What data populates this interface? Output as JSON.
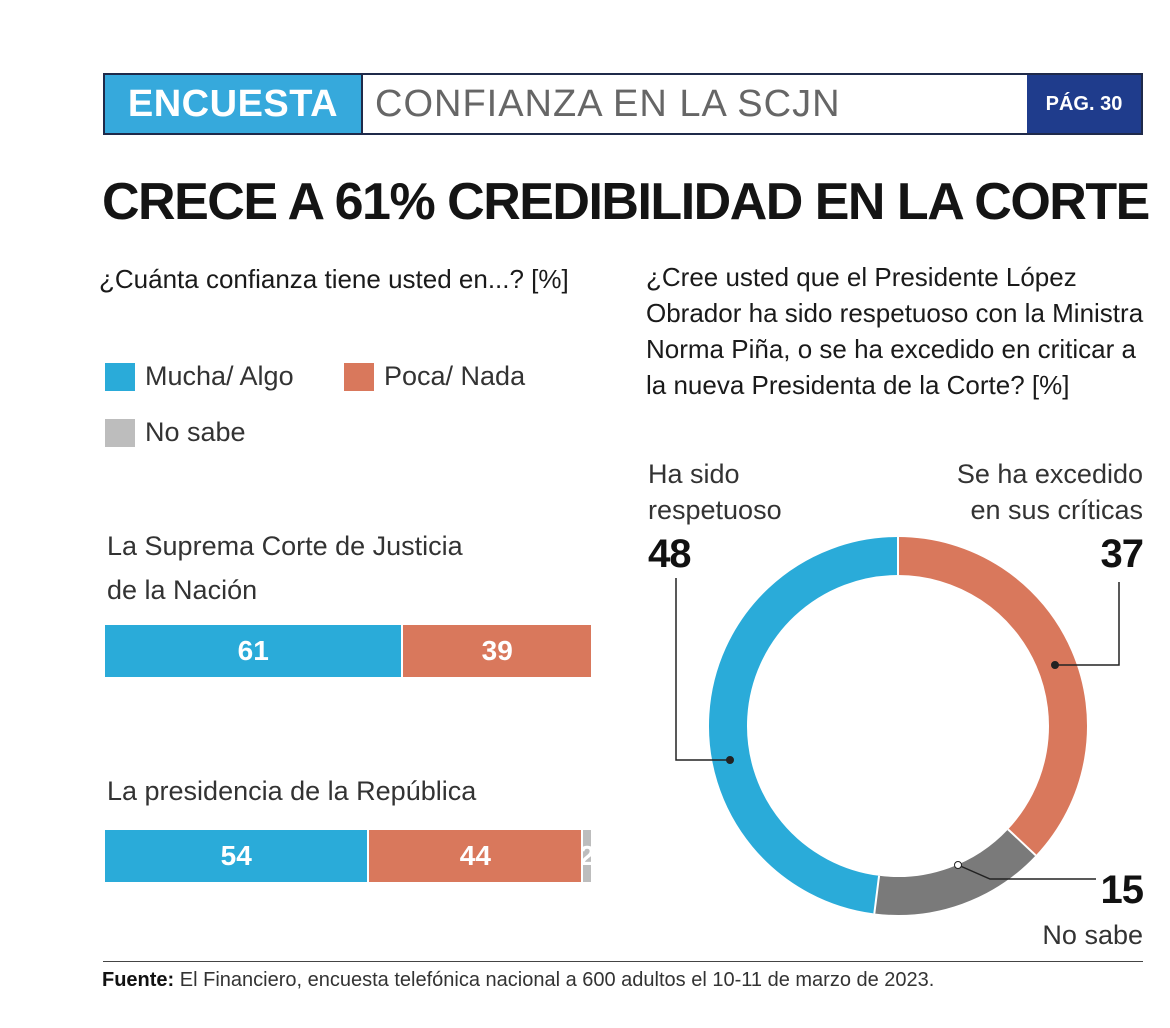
{
  "header": {
    "tag": "ENCUESTA",
    "topic": "CONFIANZA EN LA SCJN",
    "page": "PÁG. 30"
  },
  "headline": "CRECE A 61% CREDIBILIDAD EN LA CORTE",
  "colors": {
    "mucha_algo": "#2aabd9",
    "poca_nada": "#d9785c",
    "no_sabe": "#bdbdbd",
    "no_sabe_donut": "#7a7a7a",
    "header_tag": "#36a9dc",
    "header_page": "#1f3c8c"
  },
  "chart_data": [
    {
      "type": "bar",
      "orientation": "horizontal-stacked",
      "title": "¿Cuánta confianza tiene usted en...? [%]",
      "legend": [
        "Mucha/ Algo",
        "Poca/ Nada",
        "No sabe"
      ],
      "categories": [
        "La Suprema Corte de Justicia de la Nación",
        "La presidencia de la República"
      ],
      "series": [
        {
          "name": "Mucha/ Algo",
          "values": [
            61,
            54
          ]
        },
        {
          "name": "Poca/ Nada",
          "values": [
            39,
            44
          ]
        },
        {
          "name": "No sabe",
          "values": [
            0,
            2
          ]
        }
      ],
      "xlim": [
        0,
        100
      ]
    },
    {
      "type": "pie",
      "variant": "donut",
      "title": "¿Cree usted que el Presidente López Obrador ha sido respetuoso con la Ministra Norma Piña, o se ha excedido en criticar a la nueva Presidenta de la Corte? [%]",
      "slices": [
        {
          "label": "Ha sido respetuoso",
          "value": 48
        },
        {
          "label": "Se ha excedido en sus críticas",
          "value": 37
        },
        {
          "label": "No sabe",
          "value": 15
        }
      ]
    }
  ],
  "labels": {
    "q_left": "¿Cuánta confianza tiene usted en...? [%]",
    "legend_mucha": "Mucha/ Algo",
    "legend_poca": "Poca/ Nada",
    "legend_nosabe": "No sabe",
    "bar1_line1": "La Suprema Corte de Justicia",
    "bar1_line2": "de la Nación",
    "bar2_line1": "La presidencia de la República",
    "q_right": "¿Cree usted que el Presidente López Obrador ha sido respetuoso con la Ministra Norma Piña, o se ha excedido en criticar a la nueva Presidenta de la Corte? [%]",
    "respetuoso_1": "Ha sido",
    "respetuoso_2": "respetuoso",
    "excedido_1": "Se ha excedido",
    "excedido_2": "en sus críticas",
    "nosabe": "No sabe"
  },
  "footer": {
    "label": "Fuente:",
    "text": " El Financiero, encuesta telefónica nacional a 600 adultos el 10-11 de marzo de 2023."
  }
}
